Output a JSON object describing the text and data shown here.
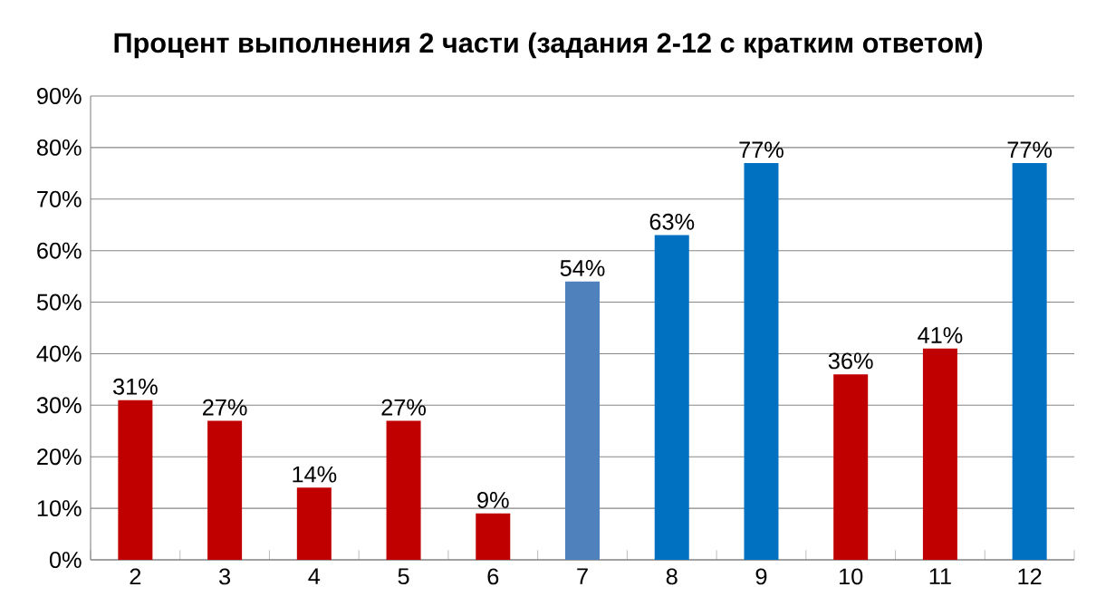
{
  "chart_data": {
    "type": "bar",
    "title": "Процент выполнения 2 части (задания 2-12 с кратким ответом)",
    "categories": [
      "2",
      "3",
      "4",
      "5",
      "6",
      "7",
      "8",
      "9",
      "10",
      "11",
      "12"
    ],
    "values": [
      31,
      27,
      14,
      27,
      9,
      54,
      63,
      77,
      36,
      41,
      77
    ],
    "colors": [
      "#c00000",
      "#c00000",
      "#c00000",
      "#c00000",
      "#c00000",
      "#4f81bd",
      "#0070c0",
      "#0070c0",
      "#c00000",
      "#c00000",
      "#0070c0"
    ],
    "value_labels": [
      "31%",
      "27%",
      "14%",
      "27%",
      "9%",
      "54%",
      "63%",
      "77%",
      "36%",
      "41%",
      "77%"
    ],
    "ylim": [
      0,
      90
    ],
    "yticks": [
      {
        "value": 0,
        "label": "0%"
      },
      {
        "value": 10,
        "label": "10%"
      },
      {
        "value": 20,
        "label": "20%"
      },
      {
        "value": 30,
        "label": "30%"
      },
      {
        "value": 40,
        "label": "40%"
      },
      {
        "value": 50,
        "label": "50%"
      },
      {
        "value": 60,
        "label": "60%"
      },
      {
        "value": 70,
        "label": "70%"
      },
      {
        "value": 80,
        "label": "80%"
      },
      {
        "value": 90,
        "label": "90%"
      }
    ],
    "grid": "y"
  }
}
